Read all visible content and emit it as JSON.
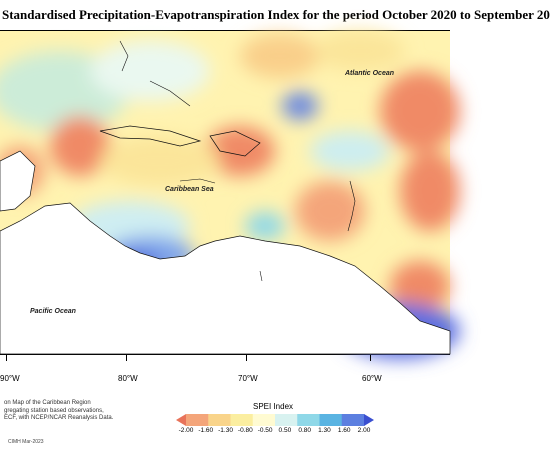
{
  "title": "Standardised Precipitation-Evapotranspiration Index for the period October 2020 to September 20",
  "map": {
    "labels": {
      "atlantic": "Atlantic Ocean",
      "caribbean": "Caribbean Sea",
      "pacific": "Pacific Ocean"
    },
    "longitude_ticks": [
      "90°W",
      "80°W",
      "70°W",
      "60°W"
    ]
  },
  "description": {
    "line1": "on Map of the Caribbean Region",
    "line2": "gregating station based observations,",
    "line3": "ECF, with NCEP/NCAR Reanalysis Data."
  },
  "credit": "CIMH Mar-2023",
  "legend": {
    "title": "SPEI Index",
    "labels": [
      "-2.00",
      "-1.60",
      "-1.30",
      "-0.80",
      "-0.50",
      "0.50",
      "0.80",
      "1.30",
      "1.60",
      "2.00"
    ],
    "colors": [
      "#e8735a",
      "#f4a57a",
      "#f9d48a",
      "#fbeea0",
      "#fffbd2",
      "#d8f2f0",
      "#8fd8e8",
      "#5ab4e2",
      "#5c7fe0",
      "#3a4fd0"
    ]
  }
}
